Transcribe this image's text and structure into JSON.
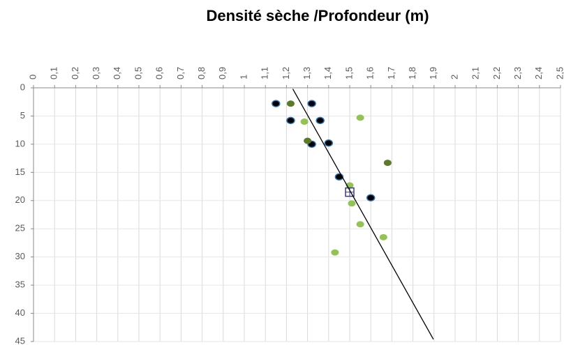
{
  "chart_data": {
    "type": "scatter",
    "title": "Densité sèche /Profondeur (m)",
    "xlim": [
      0,
      2.5
    ],
    "xticks": [
      0,
      {
        "value": 0.1,
        "label": "0,1"
      },
      {
        "value": 0.2,
        "label": "0,2"
      },
      {
        "value": 0.3,
        "label": "0,3"
      },
      {
        "value": 0.4,
        "label": "0,4"
      },
      {
        "value": 0.5,
        "label": "0,5"
      },
      {
        "value": 0.6,
        "label": "0,6"
      },
      {
        "value": 0.7,
        "label": "0,7"
      },
      {
        "value": 0.8,
        "label": "0,8"
      },
      {
        "value": 0.9,
        "label": "0,9"
      },
      1,
      {
        "value": 1.1,
        "label": "1,1"
      },
      {
        "value": 1.2,
        "label": "1,2"
      },
      {
        "value": 1.3,
        "label": "1,3"
      },
      {
        "value": 1.4,
        "label": "1,4"
      },
      {
        "value": 1.5,
        "label": "1,5"
      },
      {
        "value": 1.6,
        "label": "1,6"
      },
      {
        "value": 1.7,
        "label": "1,7"
      },
      {
        "value": 1.8,
        "label": "1,8"
      },
      {
        "value": 1.9,
        "label": "1,9"
      },
      2,
      {
        "value": 2.1,
        "label": "2,1"
      },
      {
        "value": 2.2,
        "label": "2,2"
      },
      {
        "value": 2.3,
        "label": "2,3"
      },
      {
        "value": 2.4,
        "label": "2,4"
      },
      {
        "value": 2.5,
        "label": "2,5"
      }
    ],
    "ylim": [
      0,
      45
    ],
    "yticks": [
      0,
      5,
      10,
      15,
      20,
      25,
      30,
      35,
      40,
      45
    ],
    "y_inverted": true,
    "x_axis_position": "top",
    "grid": true,
    "series": [
      {
        "color": "#000000",
        "edgecolor": "#2e75b6",
        "marker": "circle",
        "x": [
          1.15,
          1.32,
          1.22,
          1.36,
          1.4,
          1.32,
          1.45,
          1.6
        ],
        "values": [
          2.8,
          2.8,
          5.8,
          5.8,
          9.8,
          10.0,
          15.8,
          19.5
        ]
      },
      {
        "color": "#5b7a2a",
        "marker": "circle",
        "x": [
          1.22,
          1.3,
          1.68
        ],
        "values": [
          2.8,
          9.4,
          13.3
        ]
      },
      {
        "color": "#92c353",
        "marker": "circle",
        "x": [
          1.55,
          1.285,
          1.5,
          1.51,
          1.55,
          1.66,
          1.43
        ],
        "values": [
          5.3,
          6.0,
          17.3,
          20.5,
          24.2,
          26.5,
          29.2
        ]
      },
      {
        "color": "#ffffff",
        "edgecolor": "#3a3a8c",
        "marker": "square",
        "x": [
          1.5
        ],
        "values": [
          18.5
        ]
      },
      {
        "color": "#000000",
        "marker": "line",
        "x": [
          1.23,
          1.897
        ],
        "values": [
          0.2,
          44.6
        ]
      }
    ]
  }
}
